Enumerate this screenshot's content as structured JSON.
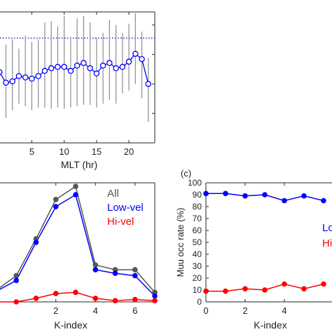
{
  "colors": {
    "axis": "#262626",
    "blue": "#0000ff",
    "blue_marker_fill": "#0000ff",
    "open_marker_fill": "#ffffff",
    "red": "#ff0000",
    "gray": "#555555",
    "errorbar": "#8c8c8c",
    "dotted": "#0000cc"
  },
  "chart_data": [
    {
      "type": "line",
      "panel_label": "",
      "xlabel": "MLT (hr)",
      "ylabel": "",
      "xlim": [
        -1,
        24
      ],
      "ylim": [
        0,
        100
      ],
      "xticks": [
        5,
        10,
        15,
        20
      ],
      "xtick_labels": [
        "5",
        "10",
        "15",
        "20"
      ],
      "yticks": [
        22.5,
        45,
        67.5,
        90
      ],
      "reference_line": 80,
      "series": [
        {
          "name": "",
          "color": "blue",
          "marker": "open-circle",
          "x": [
            0,
            1,
            2,
            3,
            4,
            5,
            6,
            7,
            8,
            9,
            10,
            11,
            12,
            13,
            14,
            15,
            16,
            17,
            18,
            19,
            20,
            21,
            22,
            23
          ],
          "y": [
            54,
            46,
            47,
            51,
            50,
            49,
            51,
            55,
            57,
            58,
            58,
            55,
            59,
            61,
            57,
            53,
            59,
            61,
            57,
            58,
            62,
            68,
            64,
            45
          ],
          "err_low": [
            22,
            27,
            22,
            21,
            22,
            24,
            24,
            28,
            31,
            31,
            32,
            28,
            31,
            32,
            28,
            26,
            29,
            28,
            27,
            20,
            22,
            23,
            30,
            29
          ],
          "err_high": [
            28,
            29,
            32,
            21,
            32,
            28,
            28,
            37,
            36,
            31,
            39,
            26,
            36,
            36,
            35,
            27,
            25,
            33,
            33,
            26,
            29,
            31,
            21,
            20
          ]
        }
      ]
    },
    {
      "type": "line",
      "panel_label": "",
      "xlabel": "K-index",
      "ylabel": "",
      "xlim": [
        -1,
        7
      ],
      "ylim": [
        0,
        100
      ],
      "xticks": [
        2,
        4,
        6
      ],
      "xtick_labels": [
        "2",
        "4",
        "6"
      ],
      "legend": "top-right",
      "series": [
        {
          "name": "All",
          "color": "gray",
          "x": [
            -1,
            0,
            1,
            2,
            3,
            4,
            5,
            6,
            7
          ],
          "y": [
            10,
            22,
            53,
            86,
            97,
            31,
            27,
            27,
            8
          ]
        },
        {
          "name": "Low-vel",
          "color": "blue",
          "x": [
            -1,
            0,
            1,
            2,
            3,
            4,
            5,
            6,
            7
          ],
          "y": [
            9,
            18,
            50,
            80,
            90,
            27,
            24,
            22,
            5
          ]
        },
        {
          "name": "Hi-vel",
          "color": "red",
          "x": [
            -1,
            0,
            1,
            2,
            3,
            4,
            5,
            6,
            7
          ],
          "y": [
            0,
            0,
            3,
            7,
            8,
            3,
            1,
            2,
            1
          ]
        }
      ]
    },
    {
      "type": "line",
      "panel_label": "(c)",
      "xlabel": "K-index",
      "ylabel": "Muu occ rate (%)",
      "xlim": [
        0,
        7
      ],
      "ylim": [
        0,
        100
      ],
      "xticks": [
        0,
        2,
        4
      ],
      "xtick_labels": [
        "0",
        "2",
        "4"
      ],
      "yticks": [
        0,
        10,
        20,
        30,
        40,
        50,
        60,
        70,
        80,
        90,
        100
      ],
      "ytick_labels": [
        "0",
        "10",
        "20",
        "30",
        "40",
        "50",
        "60",
        "70",
        "80",
        "90",
        "100"
      ],
      "legend": "right",
      "legend_visible_text": [
        "Lo",
        "Hi"
      ],
      "series": [
        {
          "name": "Lo",
          "color": "blue",
          "x": [
            0,
            1,
            2,
            3,
            4,
            5,
            6
          ],
          "y": [
            91,
            91,
            89,
            90,
            85,
            89,
            85
          ]
        },
        {
          "name": "Hi",
          "color": "red",
          "x": [
            0,
            1,
            2,
            3,
            4,
            5,
            6
          ],
          "y": [
            9,
            9,
            11,
            10,
            15,
            11,
            15
          ]
        }
      ]
    }
  ]
}
